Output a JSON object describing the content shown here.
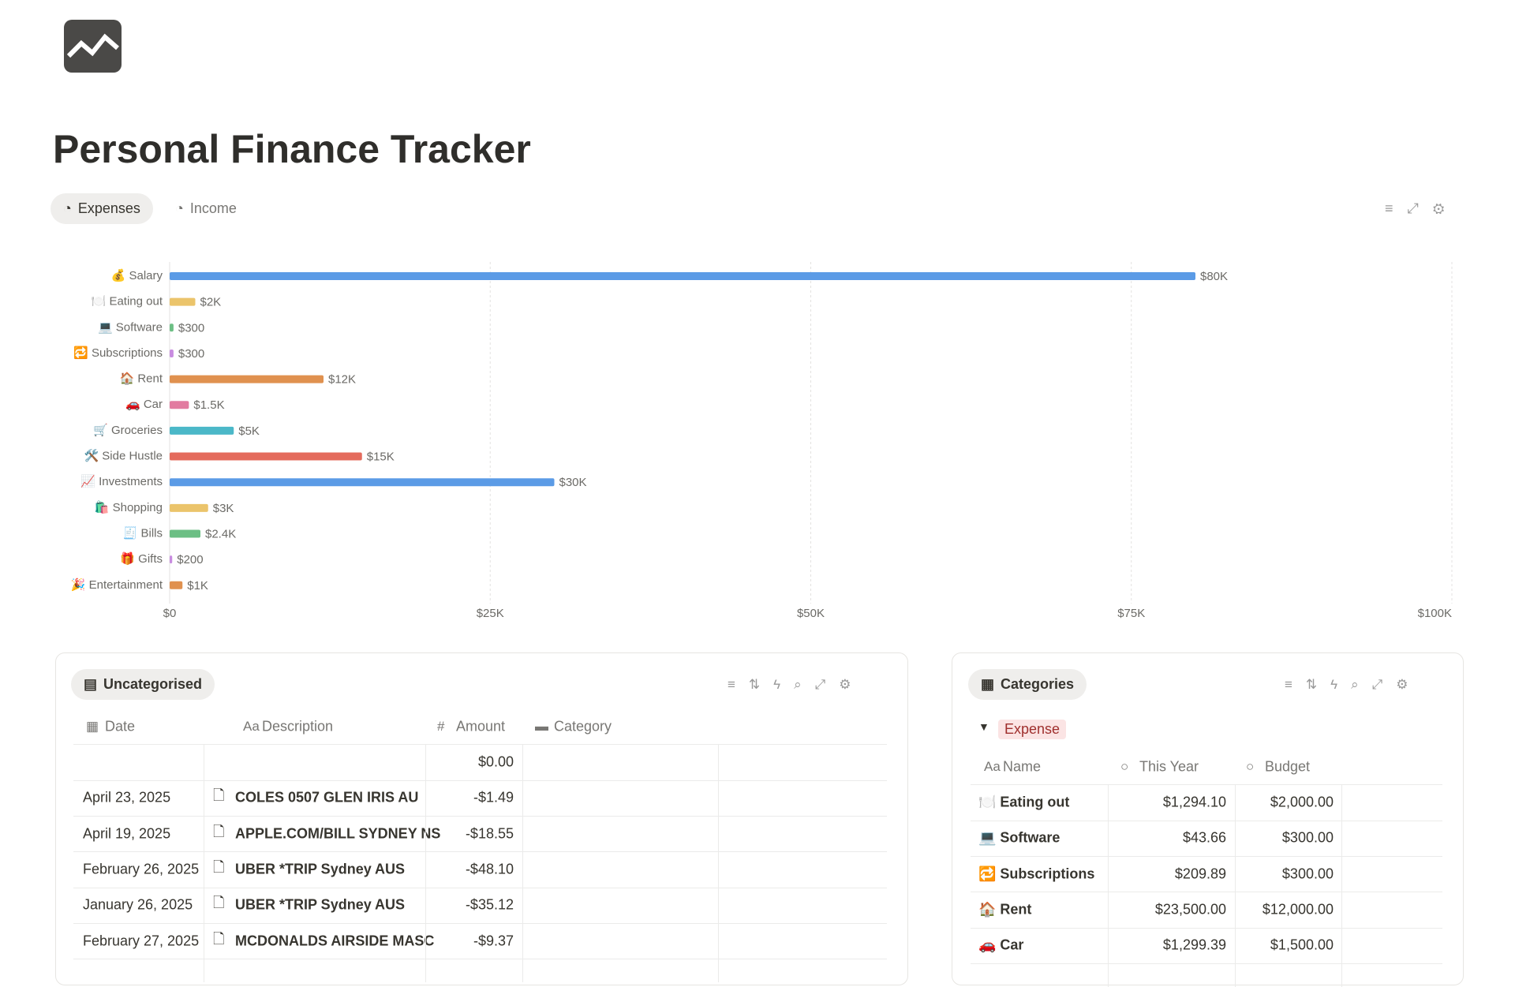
{
  "header": {
    "title": "Personal Finance Tracker"
  },
  "tabs": [
    "Expenses",
    "Income"
  ],
  "chart_data": {
    "type": "bar",
    "orientation": "horizontal",
    "categories": [
      "💰 Salary",
      "🍽️ Eating out",
      "💻 Software",
      "🔁 Subscriptions",
      "🏠 Rent",
      "🚗 Car",
      "🛒 Groceries",
      "🛠️ Side Hustle",
      "📈 Investments",
      "🛍️ Shopping",
      "🧾 Bills",
      "🎁 Gifts",
      "🎉 Entertainment"
    ],
    "values": [
      80000,
      2000,
      300,
      300,
      12000,
      1500,
      5000,
      15000,
      30000,
      3000,
      2400,
      200,
      1000
    ],
    "value_labels": [
      "$80K",
      "$2K",
      "$300",
      "$300",
      "$12K",
      "$1.5K",
      "$5K",
      "$15K",
      "$30K",
      "$3K",
      "$2.4K",
      "$200",
      "$1K"
    ],
    "colors": [
      "#5b9be6",
      "#ebc46b",
      "#6cbf84",
      "#c88ce0",
      "#e0914f",
      "#e27ba0",
      "#4bb8c8",
      "#e46b5d",
      "#5b9be6",
      "#ebc46b",
      "#6cbf84",
      "#c88ce0",
      "#e0914f"
    ],
    "xlim": [
      0,
      100000
    ],
    "xticks": [
      {
        "value": 0,
        "label": "$0"
      },
      {
        "value": 25000,
        "label": "$25K"
      },
      {
        "value": 50000,
        "label": "$50K"
      },
      {
        "value": 75000,
        "label": "$75K"
      },
      {
        "value": 100000,
        "label": "$100K"
      }
    ],
    "grid": true
  },
  "table_uncategorised": {
    "title": "Uncategorised",
    "columns": [
      "Date",
      "Description",
      "Amount",
      "Category"
    ],
    "rows": [
      {
        "amount": "$0.00"
      },
      {
        "date": "April 23, 2025",
        "description": "COLES 0507 GLEN IRIS AU",
        "amount": "-$1.49"
      },
      {
        "date": "April 19, 2025",
        "description": "APPLE.COM/BILL SYDNEY NS",
        "amount": "-$18.55"
      },
      {
        "date": "February 26, 2025",
        "description": "UBER *TRIP Sydney AUS",
        "amount": "-$48.10"
      },
      {
        "date": "January 26, 2025",
        "description": "UBER *TRIP Sydney AUS",
        "amount": "-$35.12"
      },
      {
        "date": "February 27, 2025",
        "description": "MCDONALDS AIRSIDE MASC",
        "amount": "-$9.37"
      }
    ]
  },
  "table_categories": {
    "title": "Categories",
    "group": "Expense",
    "columns": [
      "Name",
      "This Year",
      "Budget"
    ],
    "rows": [
      {
        "name": "🍽️ Eating out",
        "this_year": "$1,294.10",
        "budget": "$2,000.00"
      },
      {
        "name": "💻 Software",
        "this_year": "$43.66",
        "budget": "$300.00"
      },
      {
        "name": "🔁 Subscriptions",
        "this_year": "$209.89",
        "budget": "$300.00"
      },
      {
        "name": "🏠 Rent",
        "this_year": "$23,500.00",
        "budget": "$12,000.00"
      },
      {
        "name": "🚗 Car",
        "this_year": "$1,299.39",
        "budget": "$1,500.00"
      }
    ]
  }
}
